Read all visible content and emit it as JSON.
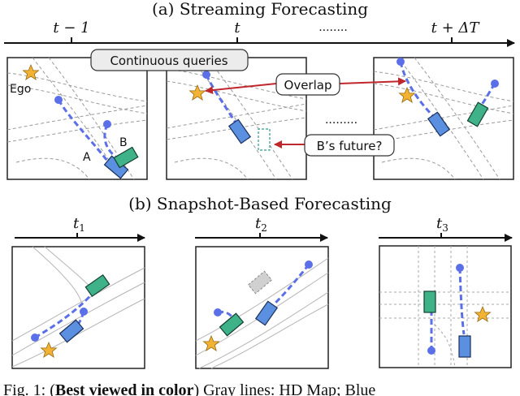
{
  "top": {
    "title": "(a) Streaming Forecasting",
    "timeline": {
      "t_prev": "t − 1",
      "t_now": "t",
      "dots": "........",
      "t_future": "t + ΔT"
    },
    "callouts": {
      "continuous_queries": "Continuous queries",
      "overlap": "Overlap",
      "dots": ".........",
      "b_future": "B’s future?"
    },
    "agent_labels": {
      "ego": "Ego",
      "a": "A",
      "b": "B"
    }
  },
  "bottom": {
    "title": "(b) Snapshot-Based Forecasting",
    "t1": "t",
    "t1_sub": "1",
    "t2": "t",
    "t2_sub": "2",
    "t3": "t",
    "t3_sub": "3"
  },
  "caption": {
    "prefix": "Fig. 1: (",
    "bold": "Best viewed in color",
    "suffix": ") Gray lines: HD Map; Blue"
  },
  "colors": {
    "ego_star": "#f2b233",
    "agent_blue": "#5b8fe0",
    "agent_green": "#3fb28a",
    "trajectory": "#5a6fe8",
    "arrow_red": "#c0272d",
    "map_gray": "#9a9a9a"
  }
}
